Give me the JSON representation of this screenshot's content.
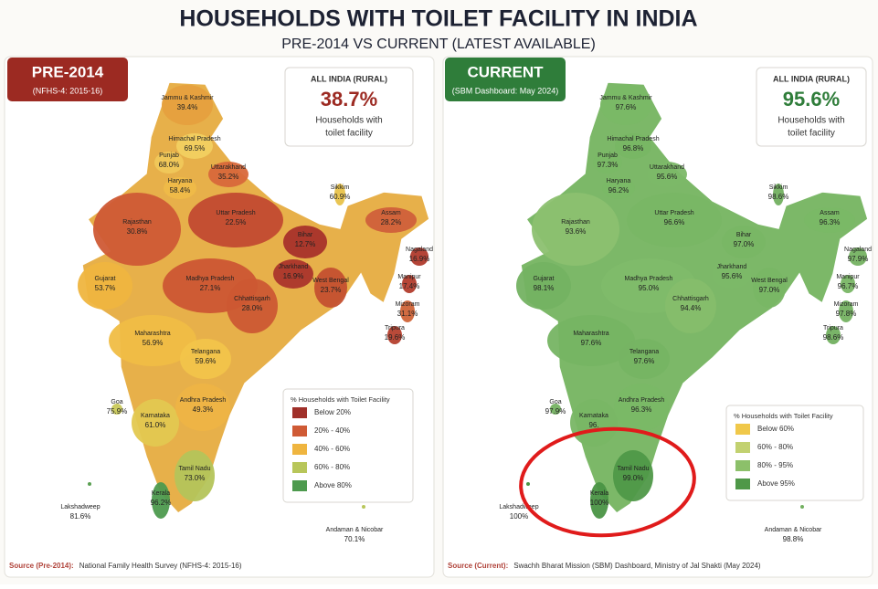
{
  "title": "HOUSEHOLDS WITH TOILET FACILITY IN INDIA",
  "subtitle": "PRE-2014 VS CURRENT (LATEST AVAILABLE)",
  "panels": [
    {
      "badge": "PRE-2014",
      "badge_note": "(NFHS-4: 2015-16)",
      "accent": "#9c2a22",
      "summary": {
        "label": "ALL INDIA (RURAL)",
        "value": "38.7%",
        "description": [
          "Households with",
          "toilet facility"
        ]
      },
      "states": [
        {
          "name": "Jammu & Kashmir",
          "value": "39.4%",
          "color": "#e6a03e"
        },
        {
          "name": "Himachal Pradesh",
          "value": "69.5%",
          "color": "#f2d060"
        },
        {
          "name": "Punjab",
          "value": "68.0%",
          "color": "#f0c85a"
        },
        {
          "name": "Uttarakhand",
          "value": "35.2%",
          "color": "#d8683a"
        },
        {
          "name": "Haryana",
          "value": "58.4%",
          "color": "#efbb48"
        },
        {
          "name": "Rajasthan",
          "value": "30.8%",
          "color": "#cf5a35"
        },
        {
          "name": "Uttar Pradesh",
          "value": "22.5%",
          "color": "#c24a30"
        },
        {
          "name": "Bihar",
          "value": "12.7%",
          "color": "#a8322a"
        },
        {
          "name": "Jharkhand",
          "value": "16.9%",
          "color": "#ab352b"
        },
        {
          "name": "West Bengal",
          "value": "23.7%",
          "color": "#c4502f"
        },
        {
          "name": "Gujarat",
          "value": "53.7%",
          "color": "#efb53f"
        },
        {
          "name": "Madhya Pradesh",
          "value": "27.1%",
          "color": "#cc5633"
        },
        {
          "name": "Chhattisgarh",
          "value": "28.0%",
          "color": "#cc5833"
        },
        {
          "name": "Sikkim",
          "value": "60.9%",
          "color": "#e8c24a"
        },
        {
          "name": "Assam",
          "value": "28.2%",
          "color": "#d0603a"
        },
        {
          "name": "Nagaland",
          "value": "16.9%",
          "color": "#b03a2c"
        },
        {
          "name": "Manipur",
          "value": "17.4%",
          "color": "#b23c2c"
        },
        {
          "name": "Mizoram",
          "value": "31.1%",
          "color": "#d06438"
        },
        {
          "name": "Tripura",
          "value": "19.6%",
          "color": "#b5402e"
        },
        {
          "name": "Maharashtra",
          "value": "56.9%",
          "color": "#f0bd44"
        },
        {
          "name": "Telangana",
          "value": "59.6%",
          "color": "#f2c44a"
        },
        {
          "name": "Goa",
          "value": "75.9%",
          "color": "#c9c95a"
        },
        {
          "name": "Karnataka",
          "value": "61.0%",
          "color": "#e3c850"
        },
        {
          "name": "Andhra Pradesh",
          "value": "49.3%",
          "color": "#eeb444"
        },
        {
          "name": "Tamil Nadu",
          "value": "73.0%",
          "color": "#b4c45a"
        },
        {
          "name": "Kerala",
          "value": "96.2%",
          "color": "#4d9a4e"
        },
        {
          "name": "Lakshadweep",
          "value": "81.6%",
          "color": "#5aa052"
        },
        {
          "name": "Andaman & Nicobar",
          "value": "70.1%",
          "color": "#b8c65a"
        }
      ],
      "legend": {
        "title": "% Households with Toilet Facility",
        "items": [
          {
            "label": "Below 20%",
            "color": "#a0302a"
          },
          {
            "label": "20% - 40%",
            "color": "#cf5a35"
          },
          {
            "label": "40% - 60%",
            "color": "#efb53f"
          },
          {
            "label": "60% - 80%",
            "color": "#b8c65a"
          },
          {
            "label": "Above 80%",
            "color": "#4d9a4e"
          }
        ]
      },
      "source": {
        "label": "Source (Pre-2014):",
        "text": "National Family Health Survey (NFHS-4: 2015-16)"
      }
    },
    {
      "badge": "CURRENT",
      "badge_note": "(SBM Dashboard: May 2024)",
      "accent": "#2f7d3a",
      "summary": {
        "label": "ALL INDIA (RURAL)",
        "value": "95.6%",
        "description": [
          "Households with",
          "toilet facility"
        ]
      },
      "states": [
        {
          "name": "Jammu & Kashmir",
          "value": "97.6%",
          "color": "#7ab866"
        },
        {
          "name": "Himachal Pradesh",
          "value": "96.8%",
          "color": "#78b664"
        },
        {
          "name": "Punjab",
          "value": "97.3%",
          "color": "#7ab866"
        },
        {
          "name": "Uttarakhand",
          "value": "95.6%",
          "color": "#7cb868"
        },
        {
          "name": "Haryana",
          "value": "96.2%",
          "color": "#7ab866"
        },
        {
          "name": "Rajasthan",
          "value": "93.6%",
          "color": "#8cc070"
        },
        {
          "name": "Uttar Pradesh",
          "value": "96.6%",
          "color": "#79b665"
        },
        {
          "name": "Bihar",
          "value": "97.0%",
          "color": "#79b665"
        },
        {
          "name": "Jharkhand",
          "value": "95.6%",
          "color": "#7cb868"
        },
        {
          "name": "West Bengal",
          "value": "97.0%",
          "color": "#79b665"
        },
        {
          "name": "Gujarat",
          "value": "98.1%",
          "color": "#74b262"
        },
        {
          "name": "Madhya Pradesh",
          "value": "95.0%",
          "color": "#80ba6a"
        },
        {
          "name": "Chhattisgarh",
          "value": "94.4%",
          "color": "#86bd6c"
        },
        {
          "name": "Sikkim",
          "value": "98.6%",
          "color": "#72b060"
        },
        {
          "name": "Assam",
          "value": "96.3%",
          "color": "#7ab866"
        },
        {
          "name": "Nagaland",
          "value": "97.9%",
          "color": "#75b262"
        },
        {
          "name": "Manipur",
          "value": "96.7%",
          "color": "#79b665"
        },
        {
          "name": "Mizoram",
          "value": "97.8%",
          "color": "#75b262"
        },
        {
          "name": "Tripura",
          "value": "98.6%",
          "color": "#72b060"
        },
        {
          "name": "Maharashtra",
          "value": "97.6%",
          "color": "#76b463"
        },
        {
          "name": "Telangana",
          "value": "97.6%",
          "color": "#76b463"
        },
        {
          "name": "Goa",
          "value": "97.9%",
          "color": "#75b262"
        },
        {
          "name": "Karnataka",
          "value": "96.",
          "color": "#79b665"
        },
        {
          "name": "Andhra Pradesh",
          "value": "96.3%",
          "color": "#7ab866"
        },
        {
          "name": "Tamil Nadu",
          "value": "99.0%",
          "color": "#4f9848"
        },
        {
          "name": "Kerala",
          "value": "100%",
          "color": "#4a9444"
        },
        {
          "name": "Lakshadweep",
          "value": "100%",
          "color": "#4a9444"
        },
        {
          "name": "Andaman & Nicobar",
          "value": "98.8%",
          "color": "#72b060"
        }
      ],
      "legend": {
        "title": "% Households with Toilet Facility",
        "items": [
          {
            "label": "Below 60%",
            "color": "#f0c84a"
          },
          {
            "label": "60% - 80%",
            "color": "#c2d170"
          },
          {
            "label": "80% - 95%",
            "color": "#8cc06a"
          },
          {
            "label": "Above 95%",
            "color": "#4f9848"
          }
        ]
      },
      "source": {
        "label": "Source (Current):",
        "text": "Swachh Bharat Mission (SBM) Dashboard, Ministry of Jal Shakti (May 2024)"
      }
    }
  ]
}
